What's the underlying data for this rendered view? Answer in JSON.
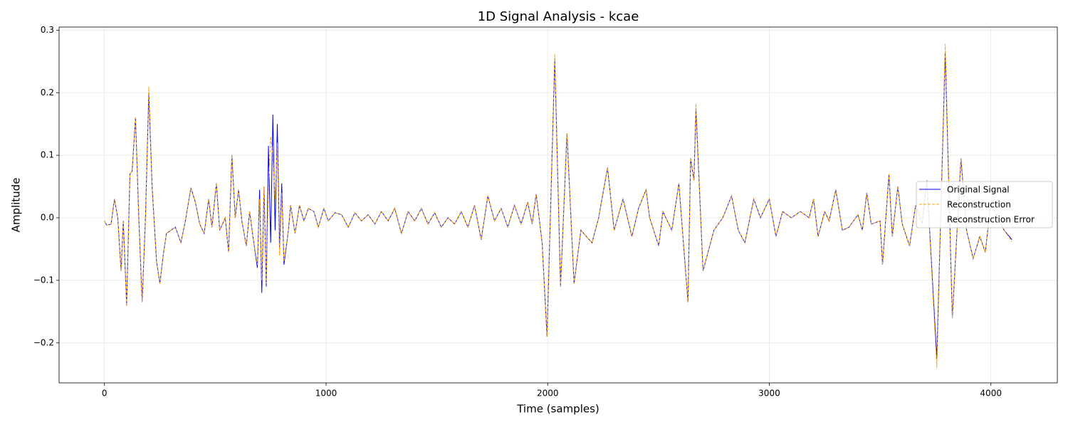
{
  "chart_data": {
    "type": "line",
    "title": "1D Signal Analysis - kcae",
    "xlabel": "Time (samples)",
    "ylabel": "Amplitude",
    "xlim": [
      -204.75,
      4299.75
    ],
    "xticks": [
      0,
      1000,
      2000,
      3000,
      4000
    ],
    "ylim": [
      -0.264,
      0.305
    ],
    "yticks": [
      {
        "value": -0.2,
        "label": "−0.2"
      },
      {
        "value": -0.1,
        "label": "−0.1"
      },
      {
        "value": 0,
        "label": "0.0"
      },
      {
        "value": 0.1,
        "label": "0.1"
      },
      {
        "value": 0.2,
        "label": "0.2"
      },
      {
        "value": 0.3,
        "label": "0.3"
      }
    ],
    "grid": true,
    "legend": "right",
    "x": [
      0,
      10,
      30,
      45,
      60,
      75,
      85,
      100,
      115,
      125,
      140,
      155,
      170,
      185,
      200,
      215,
      235,
      250,
      265,
      280,
      300,
      320,
      345,
      365,
      390,
      410,
      430,
      450,
      470,
      485,
      505,
      520,
      545,
      560,
      575,
      590,
      605,
      620,
      640,
      655,
      670,
      690,
      700,
      710,
      720,
      730,
      740,
      750,
      760,
      770,
      780,
      790,
      800,
      810,
      830,
      840,
      860,
      880,
      900,
      920,
      945,
      965,
      990,
      1010,
      1040,
      1070,
      1100,
      1130,
      1160,
      1190,
      1220,
      1250,
      1280,
      1310,
      1340,
      1370,
      1400,
      1430,
      1460,
      1490,
      1520,
      1550,
      1580,
      1610,
      1640,
      1670,
      1700,
      1730,
      1760,
      1790,
      1820,
      1850,
      1880,
      1910,
      1930,
      1948,
      1975,
      1997,
      2032,
      2058,
      2087,
      2119,
      2150,
      2200,
      2230,
      2270,
      2300,
      2340,
      2380,
      2410,
      2444,
      2460,
      2501,
      2520,
      2560,
      2592,
      2633,
      2645,
      2660,
      2669,
      2701,
      2750,
      2790,
      2830,
      2860,
      2890,
      2930,
      2960,
      3000,
      3030,
      3060,
      3100,
      3140,
      3180,
      3200,
      3220,
      3250,
      3270,
      3300,
      3330,
      3360,
      3400,
      3420,
      3440,
      3460,
      3500,
      3511,
      3540,
      3555,
      3580,
      3600,
      3633,
      3660,
      3690,
      3711,
      3756,
      3794,
      3826,
      3865,
      3890,
      3920,
      3950,
      3975,
      4000,
      4030,
      4060,
      4095
    ],
    "series": [
      {
        "name": "Original Signal",
        "color": "#0000ff",
        "dashed": false,
        "values": [
          -0.005,
          -0.012,
          -0.01,
          0.03,
          0.0,
          -0.085,
          -0.005,
          -0.14,
          0.07,
          0.075,
          0.16,
          0.0,
          -0.135,
          0.0,
          0.2,
          0.05,
          -0.07,
          -0.105,
          -0.06,
          -0.025,
          -0.02,
          -0.015,
          -0.04,
          -0.005,
          0.048,
          0.025,
          -0.01,
          -0.025,
          0.03,
          -0.015,
          0.055,
          -0.02,
          0.0,
          -0.055,
          0.1,
          0.0,
          0.045,
          -0.005,
          -0.045,
          0.01,
          -0.03,
          -0.08,
          0.045,
          -0.12,
          0.05,
          -0.11,
          0.115,
          -0.04,
          0.165,
          -0.02,
          0.15,
          -0.05,
          0.055,
          -0.075,
          -0.02,
          0.02,
          -0.025,
          0.02,
          -0.005,
          0.015,
          0.01,
          -0.015,
          0.015,
          -0.005,
          0.008,
          0.005,
          -0.015,
          0.008,
          -0.005,
          0.005,
          -0.01,
          0.01,
          -0.005,
          0.015,
          -0.025,
          0.01,
          -0.005,
          0.015,
          -0.01,
          0.008,
          -0.015,
          0.0,
          -0.01,
          0.01,
          -0.015,
          0.02,
          -0.035,
          0.035,
          -0.005,
          0.015,
          -0.015,
          0.02,
          -0.01,
          0.025,
          -0.01,
          0.038,
          -0.04,
          -0.19,
          0.255,
          -0.11,
          0.135,
          -0.105,
          -0.02,
          -0.04,
          0.0,
          0.08,
          -0.02,
          0.03,
          -0.03,
          0.015,
          0.045,
          0.0,
          -0.045,
          0.01,
          -0.02,
          0.055,
          -0.135,
          0.095,
          0.06,
          0.175,
          -0.085,
          -0.02,
          0.0,
          0.035,
          -0.02,
          -0.04,
          0.03,
          0.0,
          0.03,
          -0.03,
          0.01,
          0.0,
          0.01,
          0.0,
          0.03,
          -0.03,
          0.01,
          -0.005,
          0.045,
          -0.02,
          -0.015,
          0.005,
          -0.02,
          0.04,
          -0.01,
          -0.005,
          -0.075,
          0.07,
          -0.03,
          0.05,
          -0.01,
          -0.045,
          0.02,
          -0.01,
          0.06,
          -0.225,
          0.265,
          -0.16,
          0.095,
          -0.02,
          -0.065,
          -0.03,
          -0.055,
          0.025,
          0.0,
          -0.02,
          -0.035
        ]
      },
      {
        "name": "Reconstruction",
        "color": "#ffa500",
        "dashed": true,
        "values": [
          -0.005,
          -0.012,
          -0.01,
          0.03,
          0.0,
          -0.085,
          -0.005,
          -0.142,
          0.07,
          0.075,
          0.16,
          0.0,
          -0.135,
          0.0,
          0.21,
          0.05,
          -0.07,
          -0.105,
          -0.06,
          -0.025,
          -0.02,
          -0.015,
          -0.04,
          -0.005,
          0.048,
          0.025,
          -0.01,
          -0.025,
          0.03,
          -0.015,
          0.055,
          -0.02,
          0.0,
          -0.055,
          0.1,
          0.0,
          0.045,
          -0.005,
          -0.045,
          0.01,
          -0.03,
          -0.075,
          0.03,
          -0.1,
          0.05,
          -0.105,
          0.05,
          0.13,
          0.1,
          0.03,
          0.12,
          -0.06,
          0.04,
          -0.07,
          -0.02,
          0.02,
          -0.025,
          0.02,
          -0.005,
          0.015,
          0.01,
          -0.015,
          0.015,
          -0.005,
          0.008,
          0.005,
          -0.015,
          0.008,
          -0.005,
          0.005,
          -0.01,
          0.01,
          -0.005,
          0.015,
          -0.025,
          0.01,
          -0.005,
          0.015,
          -0.01,
          0.008,
          -0.015,
          0.0,
          -0.01,
          0.01,
          -0.015,
          0.02,
          -0.035,
          0.035,
          -0.005,
          0.015,
          -0.015,
          0.02,
          -0.01,
          0.025,
          -0.01,
          0.038,
          -0.04,
          -0.19,
          0.262,
          -0.11,
          0.135,
          -0.105,
          -0.02,
          -0.04,
          0.0,
          0.08,
          -0.02,
          0.03,
          -0.03,
          0.015,
          0.045,
          0.0,
          -0.045,
          0.01,
          -0.02,
          0.055,
          -0.135,
          0.095,
          0.06,
          0.182,
          -0.085,
          -0.02,
          0.0,
          0.035,
          -0.02,
          -0.04,
          0.03,
          0.0,
          0.03,
          -0.03,
          0.01,
          0.0,
          0.01,
          0.0,
          0.03,
          -0.03,
          0.01,
          -0.005,
          0.045,
          -0.02,
          -0.015,
          0.005,
          -0.02,
          0.04,
          -0.01,
          -0.005,
          -0.075,
          0.07,
          -0.03,
          0.05,
          -0.01,
          -0.045,
          0.02,
          -0.01,
          0.06,
          -0.24,
          0.278,
          -0.16,
          0.095,
          -0.02,
          -0.065,
          -0.03,
          -0.055,
          0.025,
          0.0,
          -0.02,
          -0.038
        ]
      },
      {
        "name": "Reconstruction Error",
        "color": "none"
      }
    ]
  }
}
